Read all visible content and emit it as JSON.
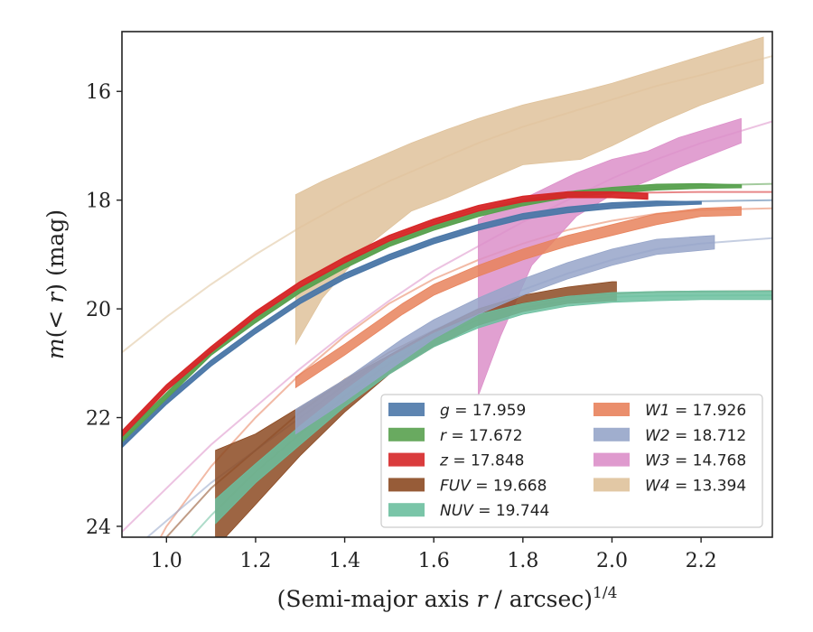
{
  "chart_data": {
    "type": "area",
    "xlabel": "(Semi-major axis r / arcsec)^{1/4}",
    "ylabel": "m(< r) (mag)",
    "xlim": [
      0.9,
      2.36
    ],
    "ylim": [
      24.2,
      14.9
    ],
    "y_inverted": true,
    "grid": false,
    "legend_position": "lower-right",
    "legend_columns": 2,
    "xticks": [
      "1.0",
      "1.2",
      "1.4",
      "1.6",
      "1.8",
      "2.0",
      "2.2"
    ],
    "yticks": [
      "16",
      "18",
      "20",
      "22",
      "24"
    ],
    "series": [
      {
        "name": "g = 17.959",
        "color": "#4c78a8",
        "fit_curve": [
          [
            0.9,
            22.5
          ],
          [
            1.0,
            21.7
          ],
          [
            1.1,
            21.0
          ],
          [
            1.2,
            20.4
          ],
          [
            1.3,
            19.85
          ],
          [
            1.4,
            19.4
          ],
          [
            1.5,
            19.05
          ],
          [
            1.6,
            18.75
          ],
          [
            1.7,
            18.5
          ],
          [
            1.8,
            18.3
          ],
          [
            1.9,
            18.18
          ],
          [
            2.0,
            18.1
          ],
          [
            2.1,
            18.05
          ],
          [
            2.2,
            18.02
          ],
          [
            2.36,
            18.0
          ]
        ],
        "band_x": [
          0.9,
          1.0,
          1.1,
          1.2,
          1.3,
          1.4,
          1.5,
          1.6,
          1.7,
          1.8,
          1.9,
          2.0,
          2.1,
          2.2
        ],
        "band_low": [
          22.55,
          21.75,
          21.05,
          20.45,
          19.9,
          19.45,
          19.1,
          18.8,
          18.55,
          18.35,
          18.23,
          18.15,
          18.1,
          18.07
        ],
        "band_high": [
          22.45,
          21.65,
          20.95,
          20.35,
          19.8,
          19.35,
          19.0,
          18.7,
          18.45,
          18.25,
          18.13,
          18.05,
          18.02,
          18.03
        ]
      },
      {
        "name": "r = 17.672",
        "color": "#59a14f",
        "fit_curve": [
          [
            0.9,
            22.4
          ],
          [
            1.0,
            21.6
          ],
          [
            1.1,
            20.8
          ],
          [
            1.2,
            20.2
          ],
          [
            1.3,
            19.65
          ],
          [
            1.4,
            19.2
          ],
          [
            1.5,
            18.8
          ],
          [
            1.6,
            18.5
          ],
          [
            1.7,
            18.25
          ],
          [
            1.8,
            18.05
          ],
          [
            1.9,
            17.9
          ],
          [
            2.0,
            17.82
          ],
          [
            2.1,
            17.76
          ],
          [
            2.2,
            17.73
          ],
          [
            2.36,
            17.7
          ]
        ],
        "band_x": [
          0.9,
          1.0,
          1.1,
          1.2,
          1.3,
          1.4,
          1.5,
          1.6,
          1.7,
          1.8,
          1.9,
          2.0,
          2.1,
          2.2,
          2.29
        ],
        "band_low": [
          22.45,
          21.65,
          20.85,
          20.25,
          19.7,
          19.25,
          18.85,
          18.55,
          18.3,
          18.1,
          17.95,
          17.87,
          17.81,
          17.78,
          17.77
        ],
        "band_high": [
          22.35,
          21.55,
          20.75,
          20.15,
          19.6,
          19.15,
          18.75,
          18.45,
          18.2,
          18.0,
          17.85,
          17.77,
          17.71,
          17.7,
          17.72
        ]
      },
      {
        "name": "z = 17.848",
        "color": "#d62728",
        "fit_curve": [
          [
            0.9,
            22.3
          ],
          [
            1.0,
            21.45
          ],
          [
            1.1,
            20.75
          ],
          [
            1.2,
            20.1
          ],
          [
            1.3,
            19.55
          ],
          [
            1.4,
            19.1
          ],
          [
            1.5,
            18.7
          ],
          [
            1.6,
            18.4
          ],
          [
            1.7,
            18.15
          ],
          [
            1.8,
            17.98
          ],
          [
            1.9,
            17.9
          ],
          [
            2.0,
            17.87
          ],
          [
            2.1,
            17.86
          ],
          [
            2.2,
            17.85
          ],
          [
            2.36,
            17.85
          ]
        ],
        "band_x": [
          0.9,
          1.0,
          1.1,
          1.2,
          1.3,
          1.4,
          1.5,
          1.6,
          1.7,
          1.8,
          1.9,
          2.0,
          2.08
        ],
        "band_low": [
          22.35,
          21.5,
          20.8,
          20.15,
          19.6,
          19.15,
          18.75,
          18.45,
          18.2,
          18.03,
          17.95,
          17.95,
          17.98
        ],
        "band_high": [
          22.25,
          21.4,
          20.7,
          20.05,
          19.5,
          19.05,
          18.65,
          18.35,
          18.1,
          17.93,
          17.85,
          17.85,
          17.88
        ]
      },
      {
        "name": "FUV = 19.668",
        "color": "#8c4a22",
        "fit_curve": [
          [
            0.9,
            25.0
          ],
          [
            1.0,
            24.2
          ],
          [
            1.1,
            23.3
          ],
          [
            1.2,
            22.6
          ],
          [
            1.3,
            21.9
          ],
          [
            1.4,
            21.3
          ],
          [
            1.5,
            20.8
          ],
          [
            1.6,
            20.4
          ],
          [
            1.7,
            20.1
          ],
          [
            1.8,
            19.9
          ],
          [
            1.9,
            19.78
          ],
          [
            2.0,
            19.72
          ],
          [
            2.1,
            19.69
          ],
          [
            2.36,
            19.67
          ]
        ],
        "band_x": [
          1.11,
          1.2,
          1.3,
          1.4,
          1.5,
          1.6,
          1.7,
          1.8,
          1.9,
          2.0,
          2.01
        ],
        "band_low": [
          24.4,
          23.6,
          22.7,
          21.9,
          21.2,
          20.7,
          20.3,
          20.05,
          19.9,
          19.85,
          19.85
        ],
        "band_high": [
          22.6,
          22.3,
          21.8,
          21.3,
          20.85,
          20.4,
          20.0,
          19.75,
          19.6,
          19.5,
          19.5
        ]
      },
      {
        "name": "NUV = 19.744",
        "color": "#6bbf9f",
        "fit_curve": [
          [
            0.9,
            25.5
          ],
          [
            1.0,
            24.7
          ],
          [
            1.1,
            23.8
          ],
          [
            1.2,
            23.0
          ],
          [
            1.3,
            22.3
          ],
          [
            1.4,
            21.6
          ],
          [
            1.5,
            21.0
          ],
          [
            1.6,
            20.55
          ],
          [
            1.7,
            20.2
          ],
          [
            1.8,
            19.98
          ],
          [
            1.9,
            19.85
          ],
          [
            2.0,
            19.78
          ],
          [
            2.1,
            19.76
          ],
          [
            2.36,
            19.75
          ]
        ],
        "band_x": [
          1.11,
          1.2,
          1.3,
          1.4,
          1.5,
          1.6,
          1.7,
          1.8,
          1.9,
          2.0,
          2.1,
          2.2,
          2.36
        ],
        "band_low": [
          23.95,
          23.2,
          22.5,
          21.8,
          21.2,
          20.7,
          20.35,
          20.1,
          19.95,
          19.88,
          19.85,
          19.83,
          19.83
        ],
        "band_high": [
          23.5,
          22.85,
          22.15,
          21.5,
          20.9,
          20.45,
          20.1,
          19.9,
          19.77,
          19.7,
          19.68,
          19.67,
          19.67
        ]
      },
      {
        "name": "W1 = 17.926",
        "color": "#e8825c",
        "fit_curve": [
          [
            0.9,
            25.5
          ],
          [
            1.0,
            24.0
          ],
          [
            1.1,
            22.9
          ],
          [
            1.2,
            22.0
          ],
          [
            1.3,
            21.2
          ],
          [
            1.4,
            20.5
          ],
          [
            1.5,
            19.9
          ],
          [
            1.6,
            19.45
          ],
          [
            1.7,
            19.1
          ],
          [
            1.8,
            18.8
          ],
          [
            1.9,
            18.55
          ],
          [
            2.0,
            18.38
          ],
          [
            2.1,
            18.25
          ],
          [
            2.2,
            18.18
          ],
          [
            2.36,
            18.15
          ]
        ],
        "band_x": [
          1.29,
          1.4,
          1.53,
          1.6,
          1.7,
          1.8,
          1.9,
          2.0,
          2.1,
          2.2,
          2.29
        ],
        "band_low": [
          21.45,
          20.85,
          20.1,
          19.75,
          19.4,
          19.1,
          18.85,
          18.65,
          18.45,
          18.3,
          18.28
        ],
        "band_high": [
          21.25,
          20.65,
          19.9,
          19.55,
          19.2,
          18.9,
          18.65,
          18.45,
          18.25,
          18.15,
          18.12
        ]
      },
      {
        "name": "W2 = 18.712",
        "color": "#96a5c9",
        "fit_curve": [
          [
            0.9,
            24.6
          ],
          [
            1.0,
            23.9
          ],
          [
            1.1,
            23.2
          ],
          [
            1.2,
            22.6
          ],
          [
            1.3,
            22.0
          ],
          [
            1.4,
            21.4
          ],
          [
            1.5,
            20.85
          ],
          [
            1.6,
            20.4
          ],
          [
            1.7,
            20.0
          ],
          [
            1.8,
            19.65
          ],
          [
            1.9,
            19.35
          ],
          [
            2.0,
            19.1
          ],
          [
            2.1,
            18.9
          ],
          [
            2.2,
            18.8
          ],
          [
            2.36,
            18.7
          ]
        ],
        "band_x": [
          1.29,
          1.4,
          1.53,
          1.6,
          1.7,
          1.8,
          1.9,
          2.0,
          2.1,
          2.23
        ],
        "band_low": [
          22.3,
          21.7,
          20.95,
          20.55,
          20.1,
          19.75,
          19.45,
          19.2,
          19.0,
          18.9
        ],
        "band_high": [
          21.85,
          21.3,
          20.55,
          20.2,
          19.8,
          19.45,
          19.15,
          18.9,
          18.72,
          18.65
        ]
      },
      {
        "name": "W3 = 14.768",
        "color": "#dc8fc9",
        "fit_curve": [
          [
            0.9,
            24.1
          ],
          [
            1.0,
            23.3
          ],
          [
            1.1,
            22.5
          ],
          [
            1.2,
            21.8
          ],
          [
            1.3,
            21.1
          ],
          [
            1.4,
            20.45
          ],
          [
            1.5,
            19.85
          ],
          [
            1.6,
            19.3
          ],
          [
            1.7,
            18.85
          ],
          [
            1.8,
            18.4
          ],
          [
            1.9,
            18.0
          ],
          [
            2.0,
            17.6
          ],
          [
            2.1,
            17.25
          ],
          [
            2.2,
            16.95
          ],
          [
            2.36,
            16.55
          ]
        ],
        "band_x": [
          1.7,
          1.75,
          1.82,
          1.92,
          2.0,
          2.08,
          2.15,
          2.29
        ],
        "band_low": [
          21.6,
          20.5,
          19.2,
          18.3,
          17.9,
          17.65,
          17.4,
          16.95
        ],
        "band_high": [
          18.35,
          18.15,
          17.9,
          17.5,
          17.25,
          17.1,
          16.85,
          16.5
        ]
      },
      {
        "name": "W4 = 13.394",
        "color": "#dfc29b",
        "fit_curve": [
          [
            0.9,
            20.8
          ],
          [
            1.0,
            20.15
          ],
          [
            1.1,
            19.55
          ],
          [
            1.2,
            19.0
          ],
          [
            1.3,
            18.5
          ],
          [
            1.4,
            18.05
          ],
          [
            1.5,
            17.65
          ],
          [
            1.6,
            17.3
          ],
          [
            1.7,
            16.95
          ],
          [
            1.8,
            16.65
          ],
          [
            1.9,
            16.4
          ],
          [
            2.0,
            16.15
          ],
          [
            2.1,
            15.9
          ],
          [
            2.2,
            15.7
          ],
          [
            2.36,
            15.35
          ]
        ],
        "band_x": [
          1.29,
          1.35,
          1.45,
          1.55,
          1.63,
          1.7,
          1.8,
          1.93,
          2.0,
          2.1,
          2.2,
          2.34
        ],
        "band_low": [
          20.65,
          19.8,
          18.85,
          18.2,
          17.95,
          17.7,
          17.35,
          17.25,
          17.0,
          16.6,
          16.25,
          15.85
        ],
        "band_high": [
          17.9,
          17.65,
          17.3,
          16.95,
          16.7,
          16.5,
          16.25,
          16.0,
          15.85,
          15.6,
          15.35,
          15.0
        ]
      }
    ]
  }
}
